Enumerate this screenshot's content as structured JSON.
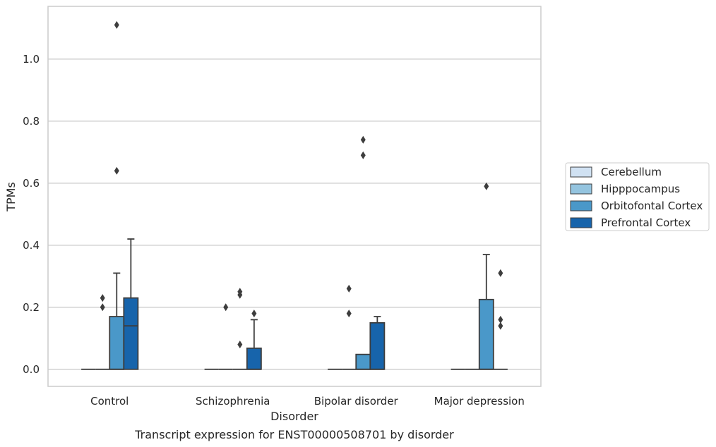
{
  "chart_data": {
    "type": "boxplot",
    "caption": "Transcript expression for ENST00000508701 by disorder",
    "xlabel": "Disorder",
    "ylabel": "TPMs",
    "ylim": [
      -0.055,
      1.17
    ],
    "yticks": [
      "0.0",
      "0.2",
      "0.4",
      "0.6",
      "0.8",
      "1.0"
    ],
    "grid": "horizontal",
    "legend_position": "right",
    "categories": [
      "Control",
      "Schizophrenia",
      "Bipolar disorder",
      "Major depression"
    ],
    "series": [
      {
        "name": "Cerebellum",
        "color": "#d0e1f2",
        "boxes": [
          {
            "q1": 0,
            "median": 0,
            "q3": 0,
            "whisker_low": 0,
            "whisker_high": 0,
            "outliers": []
          },
          {
            "q1": 0,
            "median": 0,
            "q3": 0,
            "whisker_low": 0,
            "whisker_high": 0,
            "outliers": []
          },
          {
            "q1": 0,
            "median": 0,
            "q3": 0,
            "whisker_low": 0,
            "whisker_high": 0,
            "outliers": []
          },
          {
            "q1": 0,
            "median": 0,
            "q3": 0,
            "whisker_low": 0,
            "whisker_high": 0,
            "outliers": []
          }
        ]
      },
      {
        "name": "Hipppocampus",
        "color": "#94c4df",
        "boxes": [
          {
            "q1": 0,
            "median": 0,
            "q3": 0,
            "whisker_low": 0,
            "whisker_high": 0,
            "outliers": [
              0.2,
              0.23
            ]
          },
          {
            "q1": 0,
            "median": 0,
            "q3": 0,
            "whisker_low": 0,
            "whisker_high": 0,
            "outliers": [
              0.2
            ]
          },
          {
            "q1": 0,
            "median": 0,
            "q3": 0,
            "whisker_low": 0,
            "whisker_high": 0,
            "outliers": [
              0.18,
              0.26
            ]
          },
          {
            "q1": 0,
            "median": 0,
            "q3": 0,
            "whisker_low": 0,
            "whisker_high": 0,
            "outliers": []
          }
        ]
      },
      {
        "name": "Orbitofontal Cortex",
        "color": "#4a98c9",
        "boxes": [
          {
            "q1": 0,
            "median": 0,
            "q3": 0.17,
            "whisker_low": 0,
            "whisker_high": 0.31,
            "outliers": [
              0.64,
              1.11
            ]
          },
          {
            "q1": 0,
            "median": 0,
            "q3": 0,
            "whisker_low": 0,
            "whisker_high": 0,
            "outliers": [
              0.08,
              0.24,
              0.25
            ]
          },
          {
            "q1": 0,
            "median": 0,
            "q3": 0.048,
            "whisker_low": 0,
            "whisker_high": 0.048,
            "outliers": [
              0.69,
              0.74
            ]
          },
          {
            "q1": 0,
            "median": 0,
            "q3": 0.225,
            "whisker_low": 0,
            "whisker_high": 0.37,
            "outliers": [
              0.59
            ]
          }
        ]
      },
      {
        "name": "Prefrontal Cortex",
        "color": "#1764ab",
        "boxes": [
          {
            "q1": 0,
            "median": 0.14,
            "q3": 0.23,
            "whisker_low": 0,
            "whisker_high": 0.42,
            "outliers": []
          },
          {
            "q1": 0,
            "median": 0,
            "q3": 0.068,
            "whisker_low": 0,
            "whisker_high": 0.16,
            "outliers": [
              0.18
            ]
          },
          {
            "q1": 0,
            "median": 0,
            "q3": 0.15,
            "whisker_low": 0,
            "whisker_high": 0.17,
            "outliers": []
          },
          {
            "q1": 0,
            "median": 0,
            "q3": 0,
            "whisker_low": 0,
            "whisker_high": 0,
            "outliers": [
              0.14,
              0.16,
              0.31
            ]
          }
        ]
      }
    ]
  }
}
